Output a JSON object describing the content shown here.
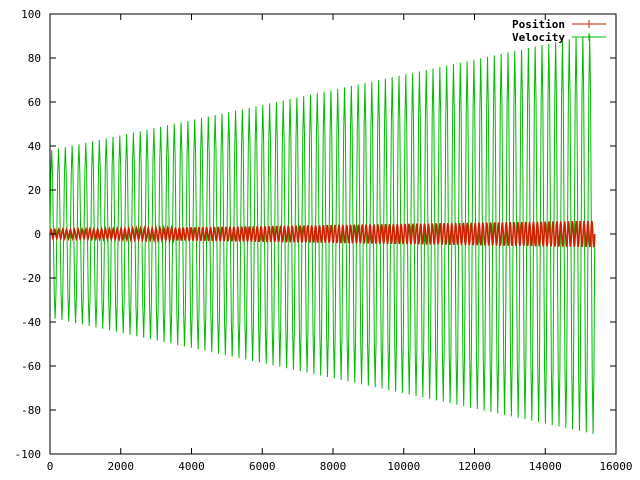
{
  "chart_data": {
    "type": "line",
    "title": "",
    "xlabel": "",
    "ylabel": "",
    "xlim": [
      0,
      16000
    ],
    "ylim": [
      -100,
      100
    ],
    "x_ticks": [
      0,
      2000,
      4000,
      6000,
      8000,
      10000,
      12000,
      14000,
      16000
    ],
    "y_ticks": [
      -100,
      -80,
      -60,
      -40,
      -20,
      0,
      20,
      40,
      60,
      80,
      100
    ],
    "x_tick_labels": [
      "0",
      "2000",
      "4000",
      "6000",
      "8000",
      "10000",
      "12000",
      "14000",
      "16000"
    ],
    "y_tick_labels": [
      "-100",
      "-80",
      "-60",
      "-40",
      "-20",
      "0",
      "20",
      "40",
      "60",
      "80",
      "100"
    ],
    "grid": false,
    "legend_placement": "top-right",
    "series": [
      {
        "name": "Position",
        "color": "#cc2200",
        "oscillation": {
          "x_start": 0,
          "x_end": 15400,
          "cycles": 140,
          "amplitude_start": 2,
          "amplitude_end": 6
        }
      },
      {
        "name": "Velocity",
        "color": "#00bb00",
        "oscillation": {
          "x_start": 0,
          "x_end": 15400,
          "cycles": 80,
          "amplitude_start": 38,
          "amplitude_end": 91
        }
      }
    ]
  }
}
